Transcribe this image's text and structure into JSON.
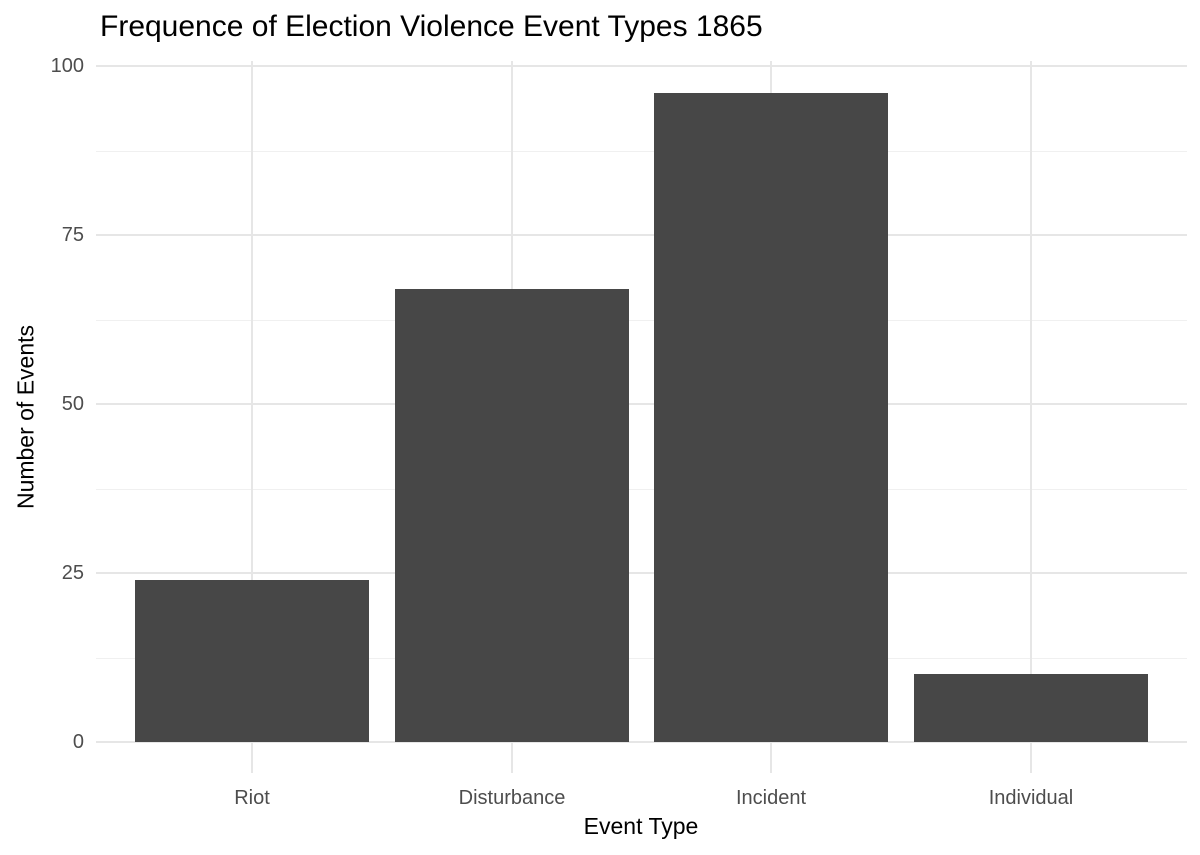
{
  "chart_data": {
    "type": "bar",
    "title": "Frequence of Election Violence Event Types 1865",
    "xlabel": "Event Type",
    "ylabel": "Number of Events",
    "categories": [
      "Riot",
      "Disturbance",
      "Incident",
      "Individual"
    ],
    "values": [
      24,
      67,
      96,
      10
    ],
    "ylim": [
      0,
      100
    ],
    "yticks": [
      0,
      25,
      50,
      75,
      100
    ],
    "yticks_minor": [
      12.5,
      37.5,
      62.5,
      87.5
    ],
    "grid": "major-and-minor-horizontal, major-vertical-at-categories",
    "legend_position": "none",
    "colors": {
      "bar": "#474747",
      "grid_major": "#e6e6e6",
      "grid_minor": "#f0f0f0",
      "tick_label": "#4d4d4d",
      "title_text": "#000000",
      "background": "#ffffff"
    }
  }
}
